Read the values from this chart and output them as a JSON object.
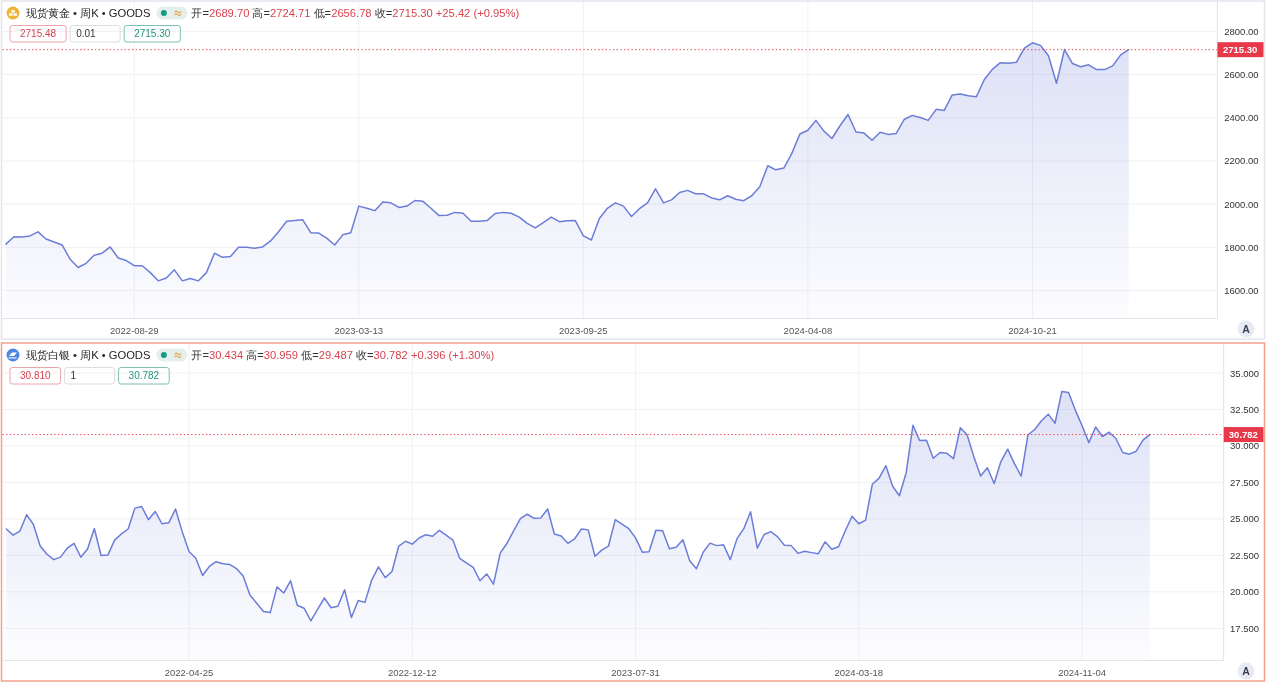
{
  "chart_data": [
    {
      "type": "area",
      "title": "现货黄金 • 周K • GOODS",
      "subtitle": "开=2689.70 高=2724.71 低=2656.78 收=2715.30 +25.42 (+0.95%)",
      "annotations": [
        "2715.48",
        "0.01",
        "2715.30",
        "A"
      ],
      "x": [
        "2022-05-09",
        "2022-05-16",
        "2022-05-23",
        "2022-05-30",
        "2022-06-06",
        "2022-06-13",
        "2022-06-20",
        "2022-06-27",
        "2022-07-04",
        "2022-07-11",
        "2022-07-18",
        "2022-07-25",
        "2022-08-01",
        "2022-08-08",
        "2022-08-15",
        "2022-08-22",
        "2022-08-29",
        "2022-09-05",
        "2022-09-12",
        "2022-09-19",
        "2022-09-26",
        "2022-10-03",
        "2022-10-10",
        "2022-10-17",
        "2022-10-24",
        "2022-10-31",
        "2022-11-07",
        "2022-11-14",
        "2022-11-21",
        "2022-11-28",
        "2022-12-05",
        "2022-12-12",
        "2022-12-19",
        "2022-12-26",
        "2023-01-02",
        "2023-01-09",
        "2023-01-16",
        "2023-01-23",
        "2023-01-30",
        "2023-02-06",
        "2023-02-13",
        "2023-02-20",
        "2023-02-27",
        "2023-03-06",
        "2023-03-13",
        "2023-03-20",
        "2023-03-27",
        "2023-04-03",
        "2023-04-10",
        "2023-04-17",
        "2023-04-24",
        "2023-05-01",
        "2023-05-08",
        "2023-05-15",
        "2023-05-22",
        "2023-05-29",
        "2023-06-05",
        "2023-06-12",
        "2023-06-19",
        "2023-06-26",
        "2023-07-03",
        "2023-07-10",
        "2023-07-17",
        "2023-07-24",
        "2023-07-31",
        "2023-08-07",
        "2023-08-14",
        "2023-08-21",
        "2023-08-28",
        "2023-09-04",
        "2023-09-11",
        "2023-09-18",
        "2023-09-25",
        "2023-10-02",
        "2023-10-09",
        "2023-10-16",
        "2023-10-23",
        "2023-10-30",
        "2023-11-06",
        "2023-11-13",
        "2023-11-20",
        "2023-11-27",
        "2023-12-04",
        "2023-12-11",
        "2023-12-18",
        "2023-12-25",
        "2024-01-01",
        "2024-01-08",
        "2024-01-15",
        "2024-01-22",
        "2024-01-29",
        "2024-02-05",
        "2024-02-12",
        "2024-02-19",
        "2024-02-26",
        "2024-03-04",
        "2024-03-11",
        "2024-03-18",
        "2024-03-25",
        "2024-04-01",
        "2024-04-08",
        "2024-04-15",
        "2024-04-22",
        "2024-04-29",
        "2024-05-06",
        "2024-05-13",
        "2024-05-20",
        "2024-05-27",
        "2024-06-03",
        "2024-06-10",
        "2024-06-17",
        "2024-06-24",
        "2024-07-01",
        "2024-07-08",
        "2024-07-15",
        "2024-07-22",
        "2024-07-29",
        "2024-08-05",
        "2024-08-12",
        "2024-08-19",
        "2024-08-26",
        "2024-09-02",
        "2024-09-09",
        "2024-09-16",
        "2024-09-23",
        "2024-09-30",
        "2024-10-07",
        "2024-10-14",
        "2024-10-21",
        "2024-10-28",
        "2024-11-04",
        "2024-11-11",
        "2024-11-18",
        "2024-11-25",
        "2024-12-02",
        "2024-12-09",
        "2024-12-16",
        "2024-12-23",
        "2024-12-30",
        "2025-01-06",
        "2025-01-13"
      ],
      "series": [
        {
          "color": "#6b7dd8",
          "values": [
            1815,
            1849,
            1848,
            1853,
            1872,
            1839,
            1825,
            1811,
            1745,
            1707,
            1726,
            1764,
            1773,
            1802,
            1751,
            1739,
            1715,
            1715,
            1683,
            1645,
            1658,
            1696,
            1645,
            1656,
            1645,
            1683,
            1773,
            1754,
            1758,
            1800,
            1800,
            1796,
            1802,
            1830,
            1872,
            1921,
            1924,
            1928,
            1868,
            1866,
            1843,
            1811,
            1858,
            1868,
            1991,
            1981,
            1970,
            2010,
            2006,
            1985,
            1991,
            2017,
            2013,
            1981,
            1947,
            1949,
            1962,
            1958,
            1921,
            1921,
            1924,
            1957,
            1962,
            1958,
            1940,
            1911,
            1890,
            1915,
            1940,
            1919,
            1923,
            1924,
            1853,
            1834,
            1934,
            1981,
            2006,
            1991,
            1943,
            1979,
            2006,
            2071,
            2006,
            2020,
            2054,
            2064,
            2048,
            2048,
            2029,
            2020,
            2039,
            2023,
            2016,
            2039,
            2081,
            2178,
            2159,
            2167,
            2235,
            2325,
            2342,
            2388,
            2338,
            2304,
            2363,
            2415,
            2334,
            2329,
            2296,
            2333,
            2323,
            2327,
            2392,
            2411,
            2401,
            2388,
            2439,
            2434,
            2506,
            2510,
            2502,
            2497,
            2577,
            2624,
            2655,
            2653,
            2657,
            2722,
            2747,
            2735,
            2687,
            2560,
            2716,
            2651,
            2636,
            2645,
            2623,
            2623,
            2640,
            2691,
            2715.3
          ]
        }
      ],
      "xlim": [
        "2022-05-06",
        "2025-03-31"
      ],
      "xticks": [
        "2022-08-29",
        "2023-03-13",
        "2023-09-25",
        "2024-04-08",
        "2024-10-21"
      ],
      "ylim": [
        1473,
        2936
      ],
      "yticks": [
        {
          "value": 1600,
          "label": "1600.00"
        },
        {
          "value": 1800,
          "label": "1800.00"
        },
        {
          "value": 2000,
          "label": "2000.00"
        },
        {
          "value": 2200,
          "label": "2200.00"
        },
        {
          "value": 2400,
          "label": "2400.00"
        },
        {
          "value": 2600,
          "label": "2600.00"
        },
        {
          "value": 2800,
          "label": "2800.00"
        }
      ],
      "ref_lines": [
        {
          "axis": "y",
          "value": 2715.3,
          "label": "2715.30",
          "color": "#e8394a",
          "line_style": "dotted"
        }
      ],
      "grid": true
    },
    {
      "type": "area",
      "title": "现货白银 • 周K • GOODS",
      "subtitle": "开=30.434 高=30.959 低=29.487 收=30.782 +0.396 (+1.30%)",
      "annotations": [
        "30.810",
        "1",
        "30.782",
        "A"
      ],
      "x": [
        "2021-10-18",
        "2021-10-25",
        "2021-11-01",
        "2021-11-08",
        "2021-11-15",
        "2021-11-22",
        "2021-11-29",
        "2021-12-06",
        "2021-12-13",
        "2021-12-20",
        "2021-12-27",
        "2022-01-03",
        "2022-01-10",
        "2022-01-17",
        "2022-01-24",
        "2022-01-31",
        "2022-02-07",
        "2022-02-14",
        "2022-02-21",
        "2022-02-28",
        "2022-03-07",
        "2022-03-14",
        "2022-03-21",
        "2022-03-28",
        "2022-04-04",
        "2022-04-11",
        "2022-04-18",
        "2022-04-25",
        "2022-05-02",
        "2022-05-09",
        "2022-05-16",
        "2022-05-23",
        "2022-05-30",
        "2022-06-06",
        "2022-06-13",
        "2022-06-20",
        "2022-06-27",
        "2022-07-04",
        "2022-07-11",
        "2022-07-18",
        "2022-07-25",
        "2022-08-01",
        "2022-08-08",
        "2022-08-15",
        "2022-08-22",
        "2022-08-29",
        "2022-09-05",
        "2022-09-12",
        "2022-09-19",
        "2022-09-26",
        "2022-10-03",
        "2022-10-10",
        "2022-10-17",
        "2022-10-24",
        "2022-10-31",
        "2022-11-07",
        "2022-11-14",
        "2022-11-21",
        "2022-11-28",
        "2022-12-05",
        "2022-12-12",
        "2022-12-19",
        "2022-12-26",
        "2023-01-02",
        "2023-01-09",
        "2023-01-16",
        "2023-01-23",
        "2023-01-30",
        "2023-02-06",
        "2023-02-13",
        "2023-02-20",
        "2023-02-27",
        "2023-03-06",
        "2023-03-13",
        "2023-03-20",
        "2023-03-27",
        "2023-04-03",
        "2023-04-10",
        "2023-04-17",
        "2023-04-24",
        "2023-05-01",
        "2023-05-08",
        "2023-05-15",
        "2023-05-22",
        "2023-05-29",
        "2023-06-05",
        "2023-06-12",
        "2023-06-19",
        "2023-06-26",
        "2023-07-03",
        "2023-07-10",
        "2023-07-17",
        "2023-07-24",
        "2023-07-31",
        "2023-08-07",
        "2023-08-14",
        "2023-08-21",
        "2023-08-28",
        "2023-09-04",
        "2023-09-11",
        "2023-09-18",
        "2023-09-25",
        "2023-10-02",
        "2023-10-09",
        "2023-10-16",
        "2023-10-23",
        "2023-10-30",
        "2023-11-06",
        "2023-11-13",
        "2023-11-20",
        "2023-11-27",
        "2023-12-04",
        "2023-12-11",
        "2023-12-18",
        "2023-12-25",
        "2024-01-01",
        "2024-01-08",
        "2024-01-15",
        "2024-01-22",
        "2024-01-29",
        "2024-02-05",
        "2024-02-12",
        "2024-02-19",
        "2024-02-26",
        "2024-03-04",
        "2024-03-11",
        "2024-03-18",
        "2024-03-25",
        "2024-04-01",
        "2024-04-08",
        "2024-04-15",
        "2024-04-22",
        "2024-04-29",
        "2024-05-06",
        "2024-05-13",
        "2024-05-20",
        "2024-05-27",
        "2024-06-03",
        "2024-06-10",
        "2024-06-17",
        "2024-06-24",
        "2024-07-01",
        "2024-07-08",
        "2024-07-15",
        "2024-07-22",
        "2024-07-29",
        "2024-08-05",
        "2024-08-12",
        "2024-08-19",
        "2024-08-26",
        "2024-09-02",
        "2024-09-09",
        "2024-09-16",
        "2024-09-23",
        "2024-09-30",
        "2024-10-07",
        "2024-10-14",
        "2024-10-21",
        "2024-10-28",
        "2024-11-04",
        "2024-11-11",
        "2024-11-18",
        "2024-11-25",
        "2024-12-02",
        "2024-12-09",
        "2024-12-16",
        "2024-12-23",
        "2024-12-30",
        "2025-01-06",
        "2025-01-13"
      ],
      "series": [
        {
          "color": "#6b7dd8",
          "values": [
            24.31,
            23.89,
            24.17,
            25.29,
            24.62,
            23.14,
            22.58,
            22.21,
            22.38,
            23.0,
            23.33,
            22.38,
            22.94,
            24.34,
            22.49,
            22.52,
            23.55,
            23.97,
            24.31,
            25.74,
            25.85,
            24.95,
            25.51,
            24.67,
            24.73,
            25.68,
            24.11,
            22.77,
            22.3,
            21.12,
            21.74,
            22.07,
            21.93,
            21.88,
            21.6,
            21.09,
            19.78,
            19.22,
            18.66,
            18.58,
            20.34,
            19.92,
            20.76,
            19.08,
            18.88,
            18.02,
            18.8,
            19.58,
            18.91,
            19.02,
            20.14,
            18.24,
            19.41,
            19.28,
            20.81,
            21.71,
            20.98,
            21.4,
            23.14,
            23.47,
            23.27,
            23.69,
            23.92,
            23.81,
            24.22,
            23.89,
            23.55,
            22.3,
            21.99,
            21.68,
            20.76,
            21.23,
            20.53,
            22.66,
            23.33,
            24.2,
            25.04,
            25.32,
            25.04,
            25.07,
            25.68,
            23.97,
            23.83,
            23.33,
            23.64,
            24.31,
            24.25,
            22.44,
            22.86,
            23.14,
            24.95,
            24.64,
            24.33,
            23.7,
            22.72,
            22.75,
            24.22,
            24.19,
            22.95,
            23.06,
            23.57,
            22.13,
            21.59,
            22.72,
            23.34,
            23.17,
            23.23,
            22.21,
            23.65,
            24.33,
            25.49,
            23.0,
            23.93,
            24.13,
            23.77,
            23.2,
            23.17,
            22.64,
            22.78,
            22.69,
            22.61,
            23.43,
            22.92,
            23.09,
            24.19,
            25.18,
            24.67,
            24.92,
            27.38,
            27.8,
            28.65,
            27.24,
            26.59,
            28.17,
            31.42,
            30.37,
            30.4,
            29.16,
            29.55,
            29.5,
            29.13,
            31.25,
            30.77,
            29.27,
            27.94,
            28.51,
            27.43,
            28.93,
            29.78,
            28.79,
            27.94,
            30.77,
            31.13,
            31.73,
            32.18,
            31.56,
            33.73,
            33.67,
            32.46,
            31.39,
            30.23,
            31.3,
            30.65,
            30.94,
            30.51,
            29.55,
            29.44,
            29.64,
            30.4,
            30.782
          ]
        }
      ],
      "xlim": [
        "2021-10-14",
        "2025-03-30"
      ],
      "xticks": [
        "2022-04-25",
        "2022-12-12",
        "2023-07-31",
        "2024-03-18",
        "2024-11-04"
      ],
      "ylim": [
        15.33,
        36.99
      ],
      "yticks": [
        {
          "value": 17.5,
          "label": "17.500"
        },
        {
          "value": 20,
          "label": "20.000"
        },
        {
          "value": 22.5,
          "label": "22.500"
        },
        {
          "value": 25,
          "label": "25.000"
        },
        {
          "value": 27.5,
          "label": "27.500"
        },
        {
          "value": 30,
          "label": "30.000"
        },
        {
          "value": 32.5,
          "label": "32.500"
        },
        {
          "value": 35,
          "label": "35.000"
        }
      ],
      "ref_lines": [
        {
          "axis": "y",
          "value": 30.782,
          "label": "30.782",
          "color": "#e8394a",
          "line_style": "dotted"
        }
      ],
      "grid": true
    }
  ]
}
